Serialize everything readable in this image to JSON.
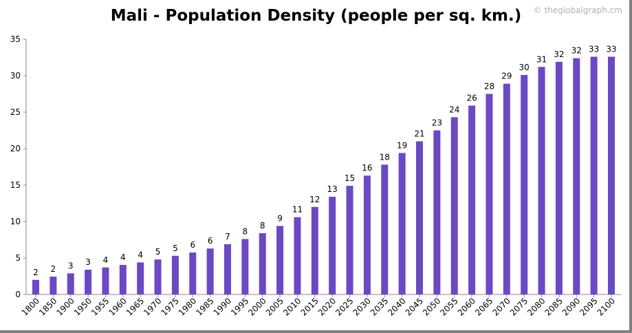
{
  "chart_data": {
    "type": "bar",
    "title": "Mali - Population Density (people per sq. km.)",
    "watermark": "© theglobalgraph.cm",
    "xlabel": "",
    "ylabel": "",
    "ylim": [
      0,
      35
    ],
    "yticks": [
      0,
      5,
      10,
      15,
      20,
      25,
      30,
      35
    ],
    "grid": false,
    "bar_color": "#6a48c8",
    "categories": [
      "1800",
      "1850",
      "1900",
      "1950",
      "1955",
      "1960",
      "1965",
      "1970",
      "1975",
      "1980",
      "1985",
      "1990",
      "1995",
      "2000",
      "2005",
      "2010",
      "2015",
      "2020",
      "2025",
      "2030",
      "2035",
      "2040",
      "2045",
      "2050",
      "2055",
      "2060",
      "2065",
      "2070",
      "2075",
      "2080",
      "2085",
      "2090",
      "2095",
      "2100"
    ],
    "values": [
      2.0,
      2.45,
      2.9,
      3.4,
      3.7,
      4.05,
      4.4,
      4.8,
      5.3,
      5.75,
      6.3,
      6.9,
      7.6,
      8.4,
      9.4,
      10.6,
      12.0,
      13.4,
      14.9,
      16.3,
      17.8,
      19.4,
      21.0,
      22.5,
      24.3,
      25.9,
      27.5,
      28.9,
      30.1,
      31.2,
      31.9,
      32.4,
      32.6,
      32.6
    ],
    "data_labels": [
      "2",
      "2",
      "3",
      "3",
      "4",
      "4",
      "4",
      "5",
      "5",
      "6",
      "6",
      "7",
      "8",
      "8",
      "9",
      "11",
      "12",
      "13",
      "15",
      "16",
      "18",
      "19",
      "21",
      "23",
      "24",
      "26",
      "28",
      "29",
      "30",
      "31",
      "32",
      "32",
      "33",
      "33"
    ]
  }
}
